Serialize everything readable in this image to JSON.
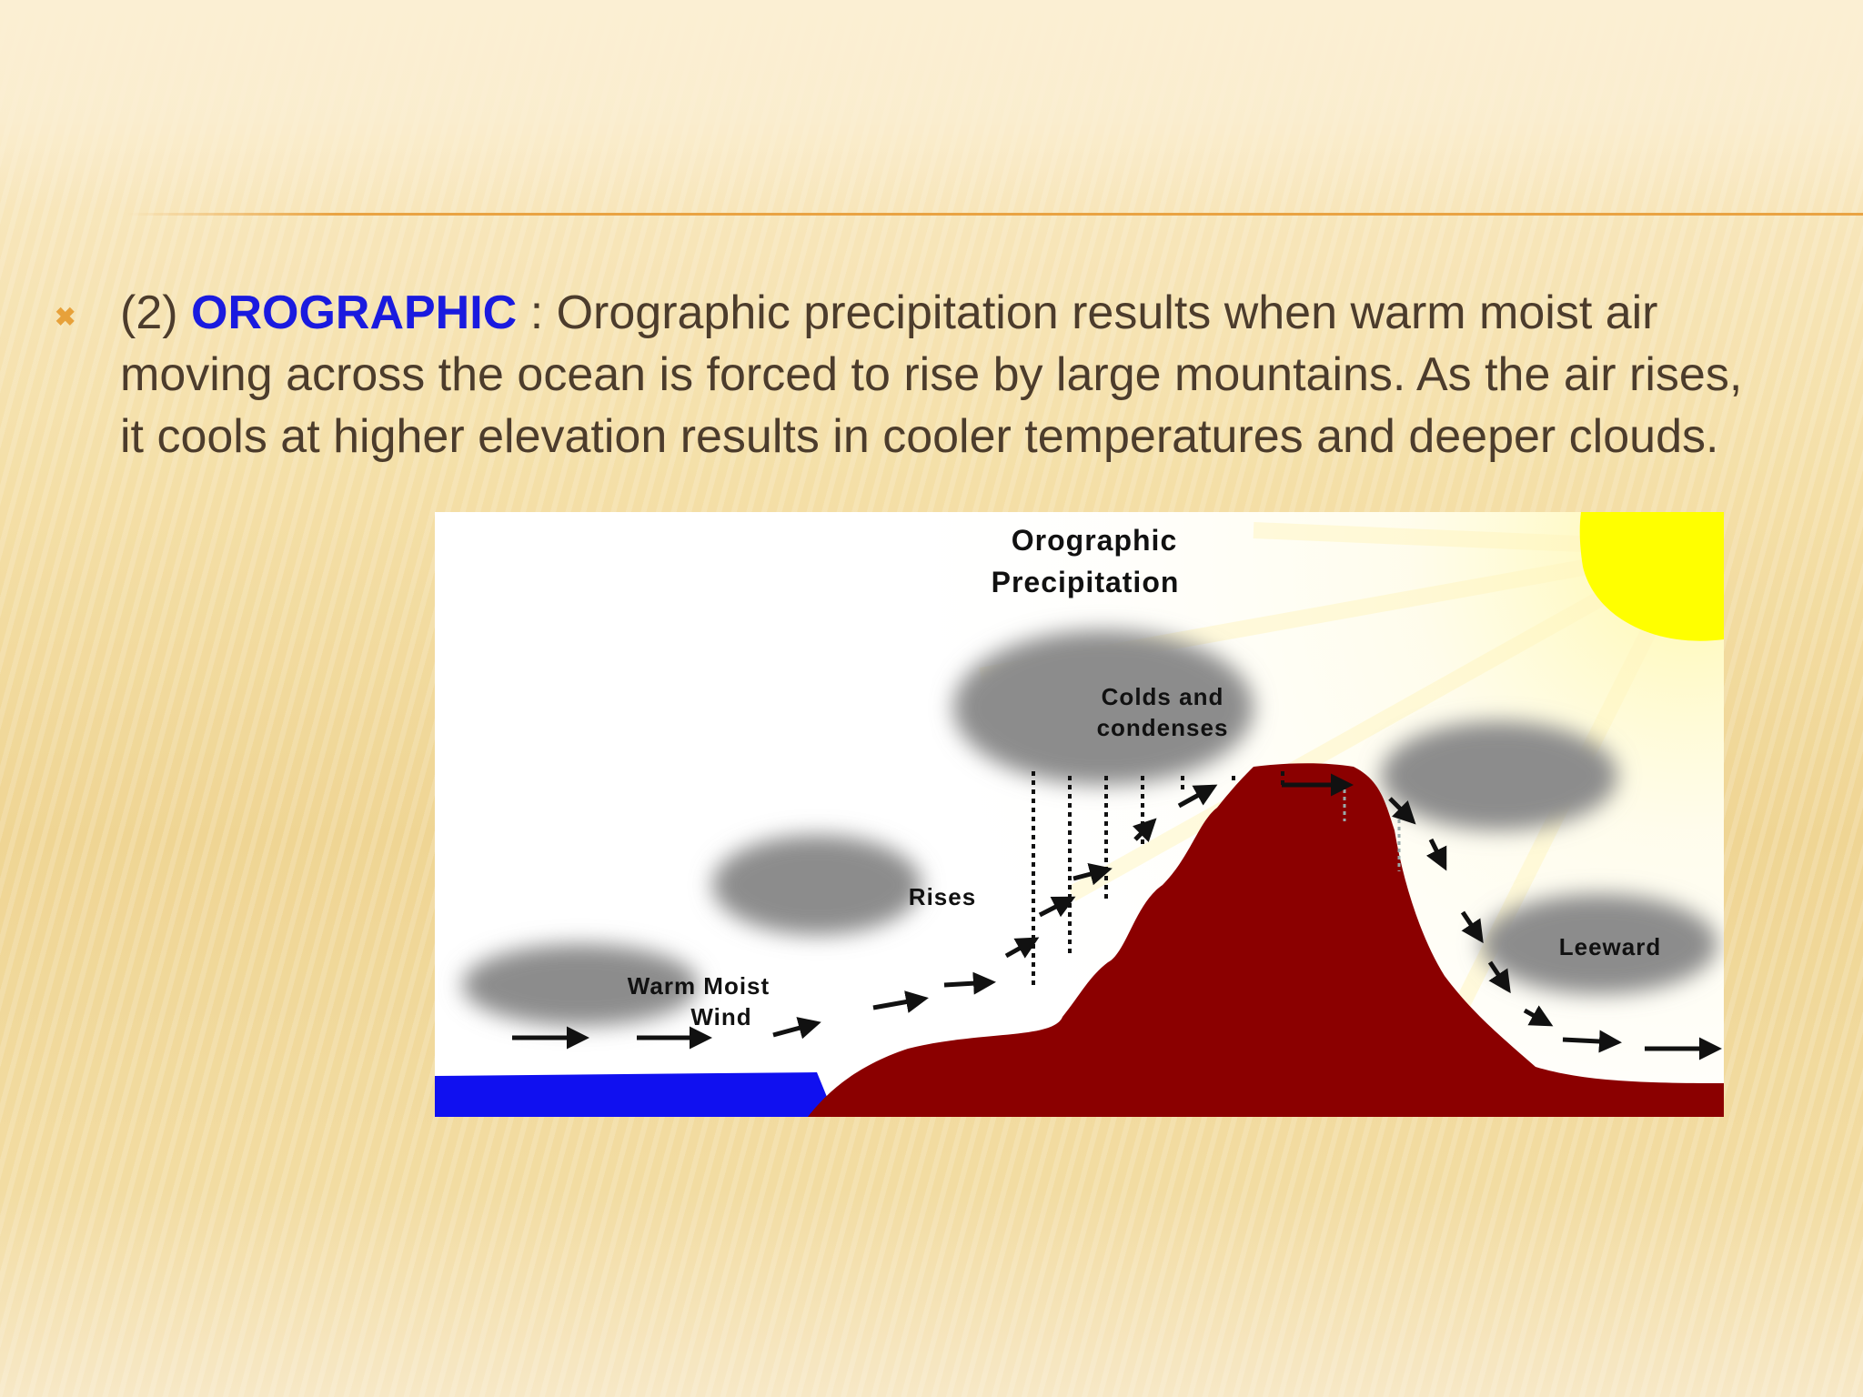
{
  "slide": {
    "bullet_icon": "x-bullet-icon",
    "prefix": "(2) ",
    "keyword": "OROGRAPHIC",
    "body": " : Orographic precipitation results when warm moist air moving across the ocean is forced to rise by large mountains. As the air rises, it cools at higher elevation results in cooler temperatures and deeper clouds."
  },
  "diagram": {
    "title_line1": "Orographic",
    "title_line2": "Precipitation",
    "labels": {
      "warm_line1": "Warm Moist",
      "warm_line2": "Wind",
      "rises": "Rises",
      "colds_line1": "Colds and",
      "colds_line2": "condenses",
      "leeward": "Leeward"
    },
    "colors": {
      "mountain": "#8b0000",
      "ocean": "#1010f0",
      "sun": "#ffff00",
      "cloud": "#8c8c8c",
      "keyword": "#1a1adf",
      "accent": "#e9a343"
    }
  }
}
